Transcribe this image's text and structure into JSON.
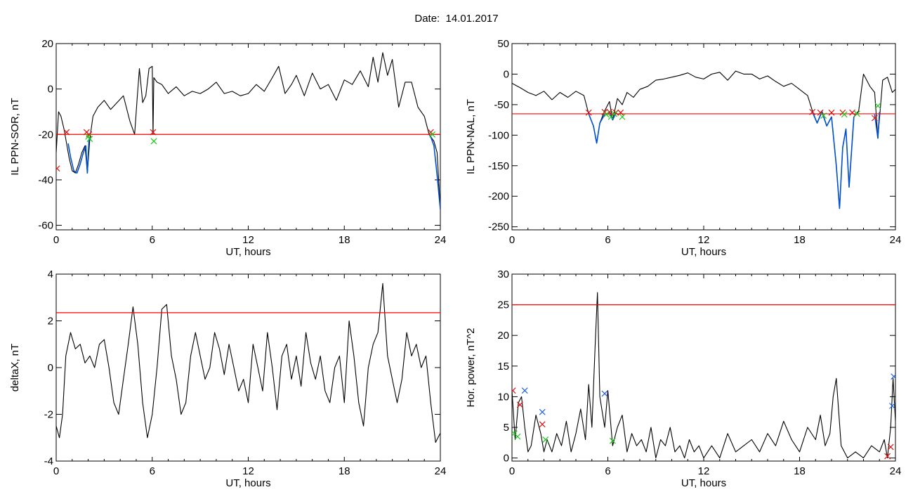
{
  "header": {
    "title": "Date:  14.01.2017"
  },
  "colors": {
    "trace": "#000000",
    "threshold": "#ff0000",
    "event_segment": "#0050d0",
    "marker_red": "#e01010",
    "marker_green": "#18c818",
    "marker_blue": "#2060e0"
  },
  "chart_data": [
    {
      "id": "panel-il-sor",
      "type": "line",
      "title": "",
      "xlabel": "UT, hours",
      "ylabel": "IL PPN-SOR, nT",
      "xlim": [
        0,
        24
      ],
      "ylim": [
        -62,
        20
      ],
      "xticks": [
        0,
        6,
        12,
        18,
        24
      ],
      "xtick_labels": [
        "0",
        "6",
        "12",
        "18",
        "24"
      ],
      "yticks": [
        20,
        0,
        -20,
        -40,
        -60
      ],
      "ytick_labels": [
        "20",
        "0",
        "-20",
        "-40",
        "-60"
      ],
      "threshold": -20,
      "series": [
        {
          "color": "#000000",
          "x": [
            0,
            0.15,
            0.3,
            0.5,
            0.65,
            0.8,
            1.0,
            1.2,
            1.4,
            1.6,
            1.8,
            1.95,
            2.1,
            2.3,
            2.6,
            3.0,
            3.4,
            3.8,
            4.2,
            4.6,
            4.9,
            5.05,
            5.2,
            5.4,
            5.6,
            5.8,
            6.0,
            6.05,
            6.1,
            6.3,
            6.6,
            7.0,
            7.5,
            8.0,
            8.5,
            9.0,
            9.5,
            10.0,
            10.5,
            11.0,
            11.5,
            12.0,
            12.5,
            13.0,
            13.5,
            13.9,
            14.3,
            14.7,
            15.0,
            15.5,
            16.0,
            16.5,
            17.0,
            17.5,
            18.0,
            18.5,
            19.0,
            19.5,
            19.8,
            20.1,
            20.4,
            20.7,
            21.0,
            21.4,
            21.8,
            22.2,
            22.6,
            23.0,
            23.3,
            23.6,
            23.8,
            24.0
          ],
          "y": [
            -28,
            -10,
            -12,
            -18,
            -24,
            -30,
            -36,
            -37,
            -33,
            -28,
            -25,
            -37,
            -22,
            -12,
            -8,
            -5,
            -9,
            -6,
            -3,
            -14,
            -20,
            -5,
            9,
            -6,
            -3,
            9,
            10,
            -20,
            5,
            3,
            2,
            -2,
            1,
            -3,
            -1,
            -2,
            0,
            3,
            -2,
            -1,
            -3,
            -2,
            2,
            -1,
            5,
            10,
            -2,
            2,
            6,
            -3,
            7,
            0,
            2,
            -5,
            4,
            2,
            8,
            1,
            14,
            3,
            16,
            6,
            13,
            -8,
            3,
            3,
            -8,
            -12,
            -20,
            -23,
            -28,
            -53
          ]
        },
        {
          "color": "#0050d0",
          "x": [
            0.75,
            0.9,
            1.1,
            1.3,
            1.5,
            1.7,
            1.85,
            1.95,
            2.05
          ],
          "y": [
            -24,
            -30,
            -36,
            -37,
            -33,
            -28,
            -25,
            -37,
            -22
          ]
        },
        {
          "color": "#0050d0",
          "x": [
            23.4,
            23.6,
            23.8,
            24.0
          ],
          "y": [
            -21,
            -25,
            -38,
            -53
          ]
        }
      ],
      "markers": [
        {
          "color": "#e01010",
          "x": [
            0.05,
            0.65,
            1.9,
            2.05,
            6.05,
            23.4
          ],
          "y": [
            -35,
            -19,
            -19,
            -20,
            -19,
            -19
          ]
        },
        {
          "color": "#18c818",
          "x": [
            2.0,
            2.1,
            6.1,
            23.5
          ],
          "y": [
            -21,
            -22,
            -23,
            -20
          ]
        }
      ]
    },
    {
      "id": "panel-il-nal",
      "type": "line",
      "title": "",
      "xlabel": "UT, hours",
      "ylabel": "IL PPN-NAL, nT",
      "xlim": [
        0,
        24
      ],
      "ylim": [
        -255,
        50
      ],
      "xticks": [
        0,
        6,
        12,
        18,
        24
      ],
      "xtick_labels": [
        "0",
        "6",
        "12",
        "18",
        "24"
      ],
      "yticks": [
        50,
        0,
        -50,
        -100,
        -150,
        -200,
        -250
      ],
      "ytick_labels": [
        "50",
        "0",
        "-50",
        "-100",
        "-150",
        "-200",
        "-250"
      ],
      "threshold": -65,
      "series": [
        {
          "color": "#000000",
          "x": [
            0,
            0.5,
            1.0,
            1.5,
            2.0,
            2.5,
            3.0,
            3.5,
            4.0,
            4.5,
            4.8,
            5.1,
            5.3,
            5.5,
            5.8,
            6.1,
            6.3,
            6.6,
            6.9,
            7.2,
            7.6,
            8.0,
            8.5,
            9.0,
            9.5,
            10.0,
            10.5,
            11.0,
            11.5,
            12.0,
            12.5,
            13.0,
            13.5,
            14.0,
            14.5,
            15.0,
            15.5,
            16.0,
            16.5,
            17.0,
            17.5,
            18.0,
            18.5,
            18.8,
            19.1,
            19.4,
            19.7,
            20.0,
            20.3,
            20.5,
            20.7,
            20.9,
            21.1,
            21.4,
            21.7,
            22.0,
            22.4,
            22.7,
            22.9,
            23.2,
            23.5,
            23.8,
            24.0
          ],
          "y": [
            -15,
            -22,
            -30,
            -35,
            -28,
            -42,
            -30,
            -38,
            -28,
            -35,
            -65,
            -85,
            -113,
            -80,
            -60,
            -45,
            -75,
            -40,
            -50,
            -30,
            -38,
            -25,
            -20,
            -10,
            -8,
            -5,
            -2,
            2,
            -5,
            -8,
            0,
            3,
            -10,
            5,
            0,
            0,
            -8,
            -3,
            -12,
            -20,
            -15,
            -25,
            -35,
            -60,
            -80,
            -60,
            -85,
            -70,
            -150,
            -220,
            -120,
            -90,
            -185,
            -70,
            -60,
            0,
            -20,
            -30,
            -105,
            -10,
            -5,
            -30,
            -25
          ]
        },
        {
          "color": "#0050d0",
          "x": [
            4.8,
            5.1,
            5.3,
            5.5,
            5.8
          ],
          "y": [
            -65,
            -85,
            -113,
            -80,
            -66
          ]
        },
        {
          "color": "#0050d0",
          "x": [
            6.1,
            6.3,
            6.5
          ],
          "y": [
            -62,
            -75,
            -64
          ]
        },
        {
          "color": "#0050d0",
          "x": [
            18.8,
            19.1,
            19.4,
            19.7,
            20.0,
            20.3,
            20.5,
            20.7,
            20.9,
            21.1,
            21.4
          ],
          "y": [
            -62,
            -80,
            -62,
            -85,
            -70,
            -150,
            -220,
            -120,
            -90,
            -185,
            -70
          ]
        },
        {
          "color": "#0050d0",
          "x": [
            22.7,
            22.9,
            23.0
          ],
          "y": [
            -66,
            -105,
            -62
          ]
        }
      ],
      "markers": [
        {
          "color": "#e01010",
          "x": [
            4.8,
            5.8,
            6.1,
            6.5,
            6.8,
            18.8,
            19.3,
            20.0,
            20.7,
            21.3,
            22.7
          ],
          "y": [
            -63,
            -62,
            -62,
            -63,
            -63,
            -62,
            -63,
            -63,
            -63,
            -63,
            -72
          ]
        },
        {
          "color": "#18c818",
          "x": [
            5.9,
            6.2,
            6.4,
            6.9,
            19.5,
            20.8,
            21.6,
            22.9
          ],
          "y": [
            -66,
            -70,
            -65,
            -70,
            -68,
            -66,
            -65,
            -52
          ]
        }
      ]
    },
    {
      "id": "panel-deltax",
      "type": "line",
      "title": "",
      "xlabel": "UT, hours",
      "ylabel": "deltaX, nT",
      "xlim": [
        0,
        24
      ],
      "ylim": [
        -4,
        4
      ],
      "xticks": [
        0,
        6,
        12,
        18,
        24
      ],
      "xtick_labels": [
        "0",
        "6",
        "12",
        "18",
        "24"
      ],
      "yticks": [
        4,
        2,
        0,
        -2,
        -4
      ],
      "ytick_labels": [
        "4",
        "2",
        "0",
        "-2",
        "-4"
      ],
      "threshold": 2.35,
      "series": [
        {
          "color": "#000000",
          "x": [
            0,
            0.2,
            0.4,
            0.6,
            0.9,
            1.2,
            1.5,
            1.8,
            2.1,
            2.4,
            2.7,
            3.0,
            3.3,
            3.6,
            3.9,
            4.2,
            4.5,
            4.8,
            5.1,
            5.4,
            5.7,
            6.0,
            6.3,
            6.6,
            6.9,
            7.2,
            7.5,
            7.8,
            8.1,
            8.4,
            8.7,
            9.0,
            9.3,
            9.6,
            9.9,
            10.2,
            10.5,
            10.8,
            11.1,
            11.4,
            11.7,
            12.0,
            12.3,
            12.6,
            12.9,
            13.2,
            13.5,
            13.8,
            14.1,
            14.4,
            14.7,
            15.0,
            15.3,
            15.6,
            15.9,
            16.2,
            16.5,
            16.8,
            17.1,
            17.4,
            17.7,
            18.0,
            18.3,
            18.6,
            18.9,
            19.2,
            19.5,
            19.8,
            20.1,
            20.4,
            20.7,
            21.0,
            21.3,
            21.6,
            21.9,
            22.2,
            22.5,
            22.8,
            23.1,
            23.4,
            23.7,
            24.0
          ],
          "y": [
            -2.5,
            -3.0,
            -2.0,
            0.5,
            1.5,
            0.8,
            1.0,
            0.2,
            0.5,
            0.0,
            1.0,
            1.2,
            0.0,
            -1.5,
            -2.0,
            -0.5,
            1.0,
            2.6,
            1.0,
            -1.5,
            -3.0,
            -2.0,
            0.0,
            2.5,
            2.7,
            0.5,
            -0.5,
            -2.0,
            -1.5,
            0.5,
            1.5,
            0.5,
            -0.5,
            0.0,
            1.5,
            0.8,
            -0.3,
            1.0,
            0.0,
            -1.0,
            -0.5,
            -1.5,
            1.0,
            0.0,
            -1.0,
            1.5,
            0.0,
            -1.8,
            0.5,
            1.0,
            -0.5,
            0.5,
            -0.8,
            1.5,
            0.2,
            -0.5,
            0.5,
            -1.0,
            -1.5,
            0.0,
            0.5,
            -1.5,
            2.0,
            0.5,
            -1.5,
            -2.5,
            0.0,
            1.0,
            1.5,
            3.6,
            0.5,
            -0.5,
            -1.5,
            -0.5,
            1.5,
            0.5,
            1.0,
            0.0,
            0.5,
            -1.5,
            -3.2,
            -2.8
          ]
        }
      ],
      "markers": []
    },
    {
      "id": "panel-hor-power",
      "type": "line",
      "title": "",
      "xlabel": "UT, hours",
      "ylabel": "Hor. power, nT^2",
      "xlim": [
        0,
        24
      ],
      "ylim": [
        -0.5,
        30
      ],
      "xticks": [
        0,
        6,
        12,
        18,
        24
      ],
      "xtick_labels": [
        "0",
        "6",
        "12",
        "18",
        "24"
      ],
      "yticks": [
        30,
        25,
        20,
        15,
        10,
        5,
        0
      ],
      "ytick_labels": [
        "30",
        "25",
        "20",
        "15",
        "10",
        "5",
        "0"
      ],
      "threshold": 25,
      "series": [
        {
          "color": "#000000",
          "x": [
            0,
            0.2,
            0.4,
            0.6,
            0.8,
            1.0,
            1.2,
            1.5,
            1.8,
            2.0,
            2.2,
            2.5,
            2.8,
            3.1,
            3.4,
            3.7,
            4.0,
            4.3,
            4.6,
            4.8,
            5.0,
            5.2,
            5.35,
            5.5,
            5.8,
            6.0,
            6.3,
            6.6,
            6.9,
            7.2,
            7.5,
            7.8,
            8.1,
            8.4,
            8.7,
            9.0,
            9.3,
            9.6,
            9.9,
            10.2,
            10.5,
            10.8,
            11.1,
            11.4,
            11.7,
            12.0,
            12.5,
            13.0,
            13.5,
            14.0,
            14.5,
            15.0,
            15.5,
            16.0,
            16.5,
            17.0,
            17.5,
            18.0,
            18.5,
            19.0,
            19.3,
            19.6,
            19.9,
            20.1,
            20.3,
            20.6,
            21.0,
            21.5,
            22.0,
            22.5,
            23.0,
            23.3,
            23.5,
            23.7,
            23.85,
            24.0
          ],
          "y": [
            11,
            3,
            9,
            10,
            5,
            1,
            2,
            7,
            4,
            1,
            3,
            1,
            4,
            2,
            6,
            1,
            4,
            8,
            3,
            12,
            5,
            18,
            27,
            10,
            5,
            11,
            2,
            5,
            7,
            1,
            4,
            2,
            3,
            1,
            5,
            0,
            3,
            2,
            5,
            1,
            2,
            0,
            3,
            1,
            2,
            0,
            2,
            0,
            4,
            1,
            2,
            3,
            1,
            4,
            2,
            6,
            3,
            1,
            5,
            3,
            7,
            2,
            4,
            10,
            13,
            2,
            0,
            1,
            0,
            2,
            1,
            3,
            0,
            5,
            13,
            6
          ]
        }
      ],
      "markers": [
        {
          "color": "#e01010",
          "x": [
            0.05,
            0.5,
            1.9,
            23.5,
            23.7
          ],
          "y": [
            11,
            8.7,
            5.5,
            0.3,
            1.8
          ]
        },
        {
          "color": "#18c818",
          "x": [
            0.15,
            0.35,
            2.1,
            6.3
          ],
          "y": [
            4,
            3.5,
            3,
            2.8
          ]
        },
        {
          "color": "#2060e0",
          "x": [
            0.8,
            1.9,
            5.8,
            23.8,
            23.9
          ],
          "y": [
            11,
            7.5,
            10.5,
            8.5,
            13.3
          ]
        }
      ]
    }
  ]
}
